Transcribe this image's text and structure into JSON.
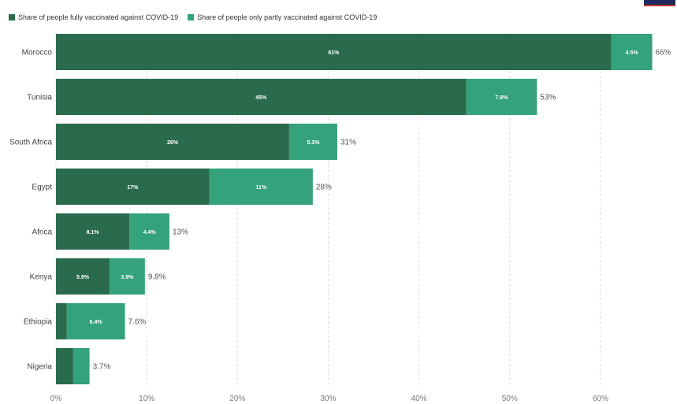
{
  "legend": {
    "fully_label": "Share of people fully vaccinated against COVID-19",
    "partly_label": "Share of people only partly vaccinated against COVID-19"
  },
  "colors": {
    "fully": "#2a6b4e",
    "partly": "#34a27d"
  },
  "chart_data": {
    "type": "bar",
    "orientation": "horizontal",
    "stacked": true,
    "categories": [
      "Morocco",
      "Tunisia",
      "South Africa",
      "Egypt",
      "Africa",
      "Kenya",
      "Ethiopia",
      "Nigeria"
    ],
    "series": [
      {
        "name": "Share of people fully vaccinated against COVID-19",
        "values": [
          61.2,
          45.2,
          25.7,
          16.9,
          8.1,
          5.9,
          1.2,
          1.9
        ],
        "labels": [
          "61%",
          "45%",
          "26%",
          "17%",
          "8.1%",
          "5.9%",
          "",
          ""
        ]
      },
      {
        "name": "Share of people only partly vaccinated against COVID-19",
        "values": [
          4.5,
          7.8,
          5.3,
          11.4,
          4.4,
          3.9,
          6.4,
          1.8
        ],
        "labels": [
          "4.5%",
          "7.8%",
          "5.3%",
          "11%",
          "4.4%",
          "3.9%",
          "6.4%",
          ""
        ]
      }
    ],
    "totals": [
      "66%",
      "53%",
      "31%",
      "28%",
      "13%",
      "9.8%",
      "7.6%",
      "3.7%"
    ],
    "xlim": [
      0,
      66
    ],
    "xticks": [
      0,
      10,
      20,
      30,
      40,
      50,
      60
    ],
    "xtick_labels": [
      "0%",
      "10%",
      "20%",
      "30%",
      "40%",
      "50%",
      "60%"
    ],
    "grid": "vertical-dashed",
    "legend_position": "top-left"
  }
}
